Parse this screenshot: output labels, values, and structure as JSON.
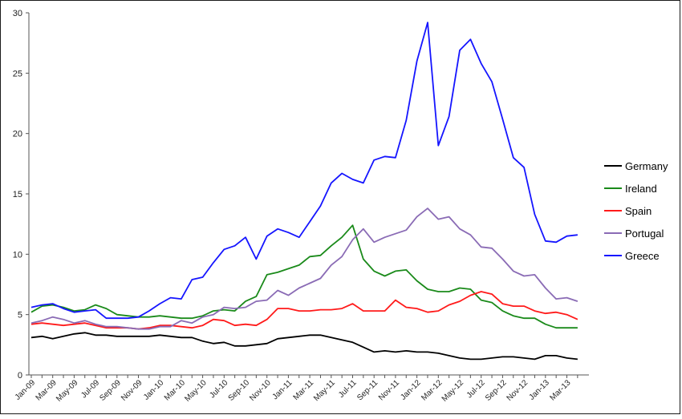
{
  "chart_data": {
    "type": "line",
    "title": "",
    "xlabel": "",
    "ylabel": "",
    "ylim": [
      0,
      30
    ],
    "yticks": [
      0,
      5,
      10,
      15,
      20,
      25,
      30
    ],
    "grid": false,
    "legend_position": "right",
    "x": [
      "Jan-09",
      "Feb-09",
      "Mar-09",
      "Apr-09",
      "May-09",
      "Jun-09",
      "Jul-09",
      "Aug-09",
      "Sep-09",
      "Oct-09",
      "Nov-09",
      "Dec-09",
      "Jan-10",
      "Feb-10",
      "Mar-10",
      "Apr-10",
      "May-10",
      "Jun-10",
      "Jul-10",
      "Aug-10",
      "Sep-10",
      "Oct-10",
      "Nov-10",
      "Dec-10",
      "Jan-11",
      "Feb-11",
      "Mar-11",
      "Apr-11",
      "May-11",
      "Jun-11",
      "Jul-11",
      "Aug-11",
      "Sep-11",
      "Oct-11",
      "Nov-11",
      "Dec-11",
      "Jan-12",
      "Feb-12",
      "Mar-12",
      "Apr-12",
      "May-12",
      "Jun-12",
      "Jul-12",
      "Aug-12",
      "Sep-12",
      "Oct-12",
      "Nov-12",
      "Dec-12",
      "Jan-13",
      "Feb-13",
      "Mar-13",
      "Apr-13"
    ],
    "xticklabels": [
      "Jan-09",
      "Mar-09",
      "May-09",
      "Jul-09",
      "Sep-09",
      "Nov-09",
      "Jan-10",
      "Mar-10",
      "May-10",
      "Jul-10",
      "Sep-10",
      "Nov-10",
      "Jan-11",
      "Mar-11",
      "May-11",
      "Jul-11",
      "Sep-11",
      "Nov-11",
      "Jan-12",
      "Mar-12",
      "May-12",
      "Jul-12",
      "Sep-12",
      "Nov-12",
      "Jan-13",
      "Mar-13"
    ],
    "series": [
      {
        "name": "Germany",
        "color": "#000000",
        "values": [
          3.1,
          3.2,
          3.0,
          3.2,
          3.4,
          3.5,
          3.3,
          3.3,
          3.2,
          3.2,
          3.2,
          3.2,
          3.3,
          3.2,
          3.1,
          3.1,
          2.8,
          2.6,
          2.7,
          2.4,
          2.4,
          2.5,
          2.6,
          3.0,
          3.1,
          3.2,
          3.3,
          3.3,
          3.1,
          2.9,
          2.7,
          2.3,
          1.9,
          2.0,
          1.9,
          2.0,
          1.9,
          1.9,
          1.8,
          1.6,
          1.4,
          1.3,
          1.3,
          1.4,
          1.5,
          1.5,
          1.4,
          1.3,
          1.6,
          1.6,
          1.4,
          1.3
        ]
      },
      {
        "name": "Ireland",
        "color": "#1a8a1a",
        "values": [
          5.2,
          5.7,
          5.8,
          5.6,
          5.3,
          5.4,
          5.8,
          5.5,
          5.0,
          4.9,
          4.8,
          4.8,
          4.9,
          4.8,
          4.7,
          4.7,
          4.9,
          5.3,
          5.4,
          5.3,
          6.1,
          6.5,
          8.3,
          8.5,
          8.8,
          9.1,
          9.8,
          9.9,
          10.7,
          11.4,
          12.4,
          9.6,
          8.6,
          8.2,
          8.6,
          8.7,
          7.8,
          7.1,
          6.9,
          6.9,
          7.2,
          7.1,
          6.2,
          6.0,
          5.3,
          4.9,
          4.7,
          4.7,
          4.2,
          3.9,
          3.9,
          3.9
        ]
      },
      {
        "name": "Spain",
        "color": "#ff1a1a",
        "values": [
          4.2,
          4.3,
          4.2,
          4.1,
          4.2,
          4.3,
          4.1,
          3.9,
          3.9,
          3.9,
          3.8,
          3.9,
          4.1,
          4.1,
          4.0,
          3.9,
          4.1,
          4.6,
          4.5,
          4.1,
          4.2,
          4.1,
          4.6,
          5.5,
          5.5,
          5.3,
          5.3,
          5.4,
          5.4,
          5.5,
          5.9,
          5.3,
          5.3,
          5.3,
          6.2,
          5.6,
          5.5,
          5.2,
          5.3,
          5.8,
          6.1,
          6.6,
          6.9,
          6.7,
          5.9,
          5.7,
          5.7,
          5.3,
          5.1,
          5.2,
          5.0,
          4.6
        ]
      },
      {
        "name": "Portugal",
        "color": "#8a6bb5",
        "values": [
          4.3,
          4.5,
          4.8,
          4.6,
          4.3,
          4.5,
          4.2,
          4.0,
          4.0,
          3.9,
          3.8,
          3.8,
          4.0,
          4.0,
          4.5,
          4.3,
          4.8,
          5.0,
          5.6,
          5.5,
          5.6,
          6.1,
          6.2,
          7.0,
          6.6,
          7.2,
          7.6,
          8.0,
          9.1,
          9.8,
          11.2,
          12.1,
          11.0,
          11.4,
          11.7,
          12.0,
          13.1,
          13.8,
          12.9,
          13.1,
          12.1,
          11.6,
          10.6,
          10.5,
          9.6,
          8.6,
          8.2,
          8.3,
          7.2,
          6.3,
          6.4,
          6.1
        ]
      },
      {
        "name": "Greece",
        "color": "#1515ff",
        "values": [
          5.6,
          5.8,
          5.9,
          5.5,
          5.2,
          5.3,
          5.4,
          4.7,
          4.7,
          4.7,
          4.8,
          5.3,
          5.9,
          6.4,
          6.3,
          7.9,
          8.1,
          9.3,
          10.4,
          10.7,
          11.4,
          9.6,
          11.5,
          12.1,
          11.8,
          11.4,
          12.7,
          14.0,
          15.9,
          16.7,
          16.2,
          15.9,
          17.8,
          18.1,
          18.0,
          21.1,
          26.0,
          29.2,
          19.0,
          21.4,
          26.9,
          27.8,
          25.8,
          24.3,
          21.2,
          18.0,
          17.2,
          13.3,
          11.1,
          11.0,
          11.5,
          11.6
        ]
      }
    ]
  }
}
